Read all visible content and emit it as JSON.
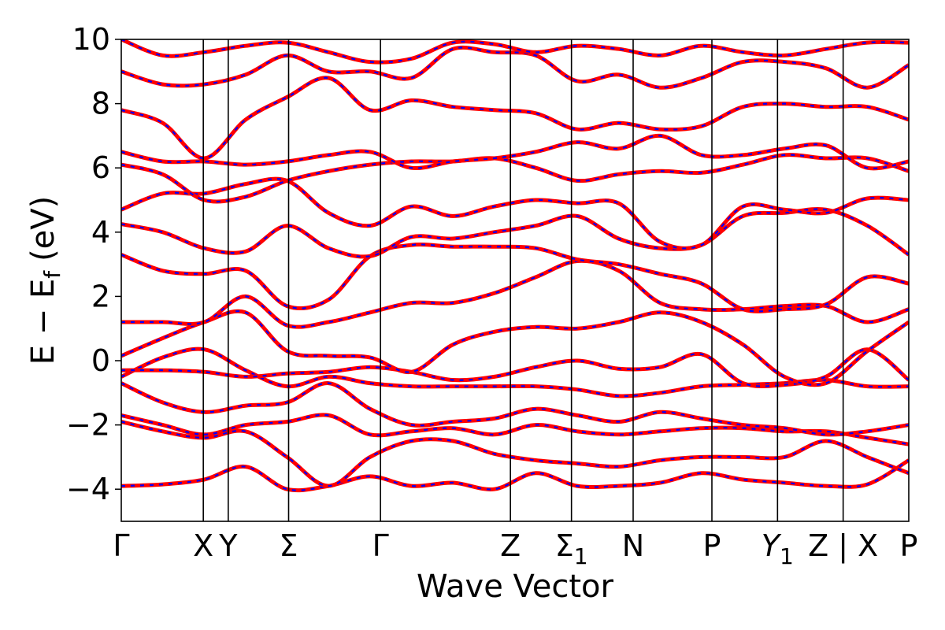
{
  "chart_data": {
    "type": "line",
    "title": "",
    "xlabel": "Wave Vector",
    "ylabel": "E − E",
    "ylabel_subscript": "f",
    "ylabel_unit": "(eV)",
    "ylim": [
      -5,
      10
    ],
    "yticks": [
      -4,
      -2,
      0,
      2,
      4,
      6,
      8,
      10
    ],
    "ytick_labels": [
      "−4",
      "−2",
      "0",
      "2",
      "4",
      "6",
      "8",
      "10"
    ],
    "xlim": [
      0,
      12
    ],
    "grid": false,
    "legend": "none",
    "high_symmetry_points": [
      {
        "x": 0.0,
        "label": "Γ"
      },
      {
        "x": 1.25,
        "label": "X"
      },
      {
        "x": 1.63,
        "label": "Y"
      },
      {
        "x": 2.55,
        "label": "Σ"
      },
      {
        "x": 3.95,
        "label": "Γ"
      },
      {
        "x": 5.93,
        "label": "Z"
      },
      {
        "x": 6.86,
        "label": "Σ",
        "sub": "1"
      },
      {
        "x": 7.8,
        "label": "N"
      },
      {
        "x": 9.0,
        "label": "P"
      },
      {
        "x": 10.0,
        "label": "Y",
        "sub": "1",
        "italic": true
      },
      {
        "x": 11.0,
        "label": "Z | X"
      },
      {
        "x": 12.0,
        "label": "P"
      }
    ],
    "band_colors": {
      "solid": "#ff0000",
      "dashed": "#0000ff"
    },
    "bands": [
      {
        "name": "b1",
        "y": [
          -3.9,
          -3.85,
          -3.7,
          -3.3,
          -4.0,
          -3.9,
          -3.6,
          -3.9,
          -3.8,
          -4.0,
          -3.5,
          -3.9,
          -3.9,
          -3.8,
          -3.5,
          -3.7,
          -3.8,
          -3.9,
          -3.85,
          -3.1
        ]
      },
      {
        "name": "b2",
        "y": [
          -1.9,
          -2.2,
          -2.4,
          -2.2,
          -3.0,
          -3.9,
          -3.0,
          -2.5,
          -2.5,
          -2.9,
          -3.1,
          -3.2,
          -3.3,
          -3.1,
          -3.0,
          -3.0,
          -3.0,
          -2.5,
          -3.0,
          -3.5
        ]
      },
      {
        "name": "b3",
        "y": [
          -1.7,
          -2.0,
          -2.3,
          -2.0,
          -1.9,
          -1.7,
          -2.3,
          -2.2,
          -2.1,
          -2.3,
          -2.0,
          -2.2,
          -2.3,
          -2.2,
          -2.1,
          -2.1,
          -2.2,
          -2.2,
          -2.4,
          -2.6
        ]
      },
      {
        "name": "b4",
        "y": [
          -0.7,
          -1.3,
          -1.6,
          -1.4,
          -1.3,
          -0.7,
          -1.5,
          -2.0,
          -1.9,
          -1.8,
          -1.5,
          -1.7,
          -1.9,
          -1.6,
          -1.8,
          -2.0,
          -2.1,
          -2.3,
          -2.2,
          -2.0
        ]
      },
      {
        "name": "b5",
        "y": [
          -0.5,
          0.1,
          0.35,
          -0.3,
          -0.8,
          -0.5,
          -0.7,
          -0.8,
          -0.8,
          -0.8,
          -0.8,
          -0.9,
          -1.1,
          -1.0,
          -0.8,
          -0.75,
          -0.7,
          -0.6,
          -0.8,
          -0.8
        ]
      },
      {
        "name": "b6",
        "y": [
          -0.3,
          -0.3,
          -0.35,
          -0.5,
          -0.4,
          -0.35,
          -0.2,
          -0.35,
          -0.6,
          -0.5,
          -0.2,
          0.0,
          -0.25,
          -0.2,
          0.2,
          -0.7,
          -0.75,
          -0.5,
          0.35,
          -0.6
        ]
      },
      {
        "name": "b7",
        "y": [
          0.15,
          0.7,
          1.2,
          1.5,
          0.3,
          0.15,
          0.1,
          -0.35,
          0.5,
          0.9,
          1.05,
          1.0,
          1.2,
          1.5,
          1.2,
          0.5,
          -0.5,
          -0.7,
          0.3,
          1.2
        ]
      },
      {
        "name": "b8",
        "y": [
          1.2,
          1.2,
          1.2,
          2.0,
          1.1,
          1.2,
          1.5,
          1.8,
          1.8,
          2.1,
          2.6,
          3.1,
          2.8,
          1.8,
          1.6,
          1.6,
          1.7,
          1.7,
          1.2,
          1.6
        ]
      },
      {
        "name": "b9",
        "y": [
          3.3,
          2.8,
          2.7,
          2.8,
          1.7,
          1.9,
          3.25,
          3.6,
          3.55,
          3.55,
          3.5,
          3.15,
          3.0,
          2.7,
          2.4,
          1.6,
          1.6,
          1.75,
          2.6,
          2.4
        ]
      },
      {
        "name": "b10",
        "y": [
          4.25,
          4.0,
          3.5,
          3.4,
          4.2,
          3.5,
          3.25,
          3.85,
          3.8,
          4.0,
          4.2,
          4.5,
          3.8,
          3.5,
          3.6,
          4.5,
          4.6,
          4.7,
          4.2,
          3.3
        ]
      },
      {
        "name": "b11",
        "y": [
          4.7,
          5.2,
          5.2,
          5.5,
          5.6,
          4.6,
          4.2,
          4.8,
          4.5,
          4.8,
          5.0,
          4.9,
          4.9,
          3.7,
          3.6,
          4.8,
          4.7,
          4.6,
          5.05,
          5.0
        ]
      },
      {
        "name": "b12",
        "y": [
          6.1,
          5.8,
          5.0,
          5.1,
          5.6,
          5.9,
          6.1,
          6.2,
          6.2,
          6.3,
          6.0,
          5.6,
          5.8,
          5.9,
          5.85,
          6.1,
          6.4,
          6.3,
          6.3,
          5.9
        ]
      },
      {
        "name": "b13",
        "y": [
          6.5,
          6.2,
          6.2,
          6.1,
          6.2,
          6.4,
          6.5,
          6.0,
          6.2,
          6.3,
          6.5,
          6.8,
          6.6,
          7.0,
          6.4,
          6.4,
          6.6,
          6.7,
          6.0,
          6.2
        ]
      },
      {
        "name": "b14",
        "y": [
          7.8,
          7.4,
          6.3,
          7.5,
          8.2,
          8.8,
          7.8,
          8.1,
          7.9,
          7.8,
          7.7,
          7.2,
          7.4,
          7.2,
          7.3,
          7.9,
          8.0,
          7.9,
          7.9,
          7.5
        ]
      },
      {
        "name": "b15",
        "y": [
          9.0,
          8.6,
          8.6,
          8.9,
          9.5,
          9.0,
          9.0,
          8.8,
          9.7,
          9.6,
          9.5,
          8.7,
          8.9,
          8.5,
          8.8,
          9.3,
          9.3,
          9.1,
          8.5,
          9.2
        ]
      },
      {
        "name": "b16",
        "y": [
          10.0,
          9.5,
          9.6,
          9.8,
          9.9,
          9.6,
          9.3,
          9.4,
          9.9,
          9.85,
          9.6,
          9.8,
          9.7,
          9.5,
          9.8,
          9.6,
          9.5,
          9.7,
          9.9,
          9.9
        ]
      }
    ]
  }
}
